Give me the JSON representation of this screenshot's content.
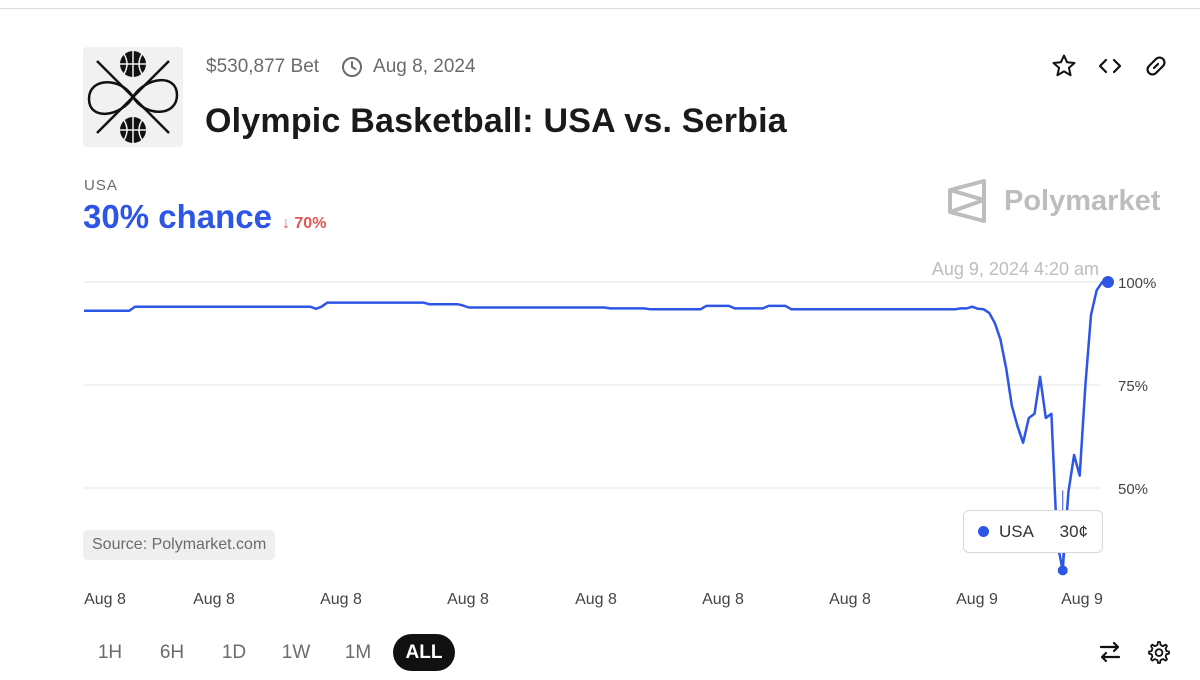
{
  "header": {
    "volume": "$530,877 Bet",
    "date": "Aug 8, 2024",
    "title": "Olympic Basketball: USA vs. Serbia",
    "actions": [
      "star-icon",
      "embed-code-icon",
      "link-icon"
    ]
  },
  "summary": {
    "outcome": "USA",
    "chance": "30% chance",
    "delta": "↓ 70%",
    "brand": "Polymarket"
  },
  "colors": {
    "series": "#2d55e6",
    "delta_down": "#e05555",
    "grid": "#e6e6e6",
    "text_muted": "#6b6b6b"
  },
  "source": "Source: Polymarket.com",
  "tooltip": {
    "series": "USA",
    "value": "30¢"
  },
  "chart_data": {
    "type": "line",
    "series": [
      {
        "name": "USA",
        "values": [
          93,
          93,
          93,
          93,
          93,
          93,
          93,
          93,
          93,
          94,
          94,
          94,
          94,
          94,
          94,
          94,
          94,
          94,
          94,
          94,
          94,
          94,
          94,
          94,
          94,
          94,
          94,
          94,
          94,
          94,
          94,
          94,
          94,
          94,
          94,
          94,
          94,
          94,
          94,
          94,
          94,
          93.5,
          94,
          95,
          95,
          95,
          95,
          95,
          95,
          95,
          95,
          95,
          95,
          95,
          95,
          95,
          95,
          95,
          95,
          95,
          95,
          94.6,
          94.6,
          94.6,
          94.6,
          94.6,
          94.6,
          94.3,
          93.8,
          93.8,
          93.8,
          93.8,
          93.8,
          93.8,
          93.8,
          93.8,
          93.8,
          93.8,
          93.8,
          93.8,
          93.8,
          93.8,
          93.8,
          93.8,
          93.8,
          93.8,
          93.8,
          93.8,
          93.8,
          93.8,
          93.8,
          93.8,
          93.8,
          93.6,
          93.6,
          93.6,
          93.6,
          93.6,
          93.6,
          93.6,
          93.4,
          93.4,
          93.4,
          93.4,
          93.4,
          93.4,
          93.4,
          93.4,
          93.4,
          93.4,
          94.2,
          94.2,
          94.2,
          94.2,
          94.2,
          93.6,
          93.6,
          93.6,
          93.6,
          93.6,
          93.6,
          94.2,
          94.2,
          94.2,
          94.2,
          93.4,
          93.4,
          93.4,
          93.4,
          93.4,
          93.4,
          93.4,
          93.4,
          93.4,
          93.4,
          93.4,
          93.4,
          93.4,
          93.4,
          93.4,
          93.4,
          93.4,
          93.4,
          93.4,
          93.4,
          93.4,
          93.4,
          93.4,
          93.4,
          93.4,
          93.4,
          93.4,
          93.4,
          93.4,
          93.4,
          93.6,
          93.6,
          94,
          93.5,
          93.4,
          92.5,
          90,
          86,
          79,
          70,
          65,
          61,
          67,
          68,
          77,
          67,
          68,
          37,
          30,
          49,
          58,
          53,
          75,
          92,
          98,
          100,
          100
        ]
      }
    ],
    "x_tick_labels": [
      "Aug 8",
      "Aug 8",
      "Aug 8",
      "Aug 8",
      "Aug 8",
      "Aug 8",
      "Aug 8",
      "Aug 9",
      "Aug 9"
    ],
    "y_ticks": [
      50,
      75,
      100
    ],
    "y_tick_labels": [
      "50%",
      "75%",
      "100%"
    ],
    "ylim": [
      25,
      100
    ],
    "hover_timestamp": "Aug 9, 2024 4:20 am",
    "grid": true,
    "y_axis_side": "right"
  },
  "time_ranges": {
    "options": [
      "1H",
      "6H",
      "1D",
      "1W",
      "1M",
      "ALL"
    ],
    "selected": "ALL"
  },
  "toolbar": [
    "swap-icon",
    "settings-icon"
  ]
}
